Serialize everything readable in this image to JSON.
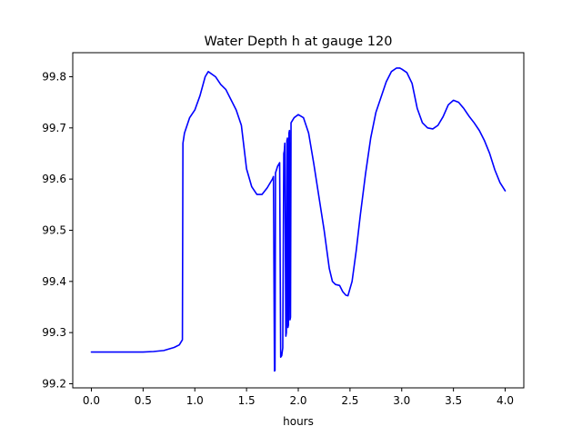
{
  "chart_data": {
    "type": "line",
    "title": "Water Depth h at gauge 120",
    "xlabel": "hours",
    "ylabel": "",
    "xlim": [
      -0.18,
      4.18
    ],
    "ylim": [
      99.192,
      99.847
    ],
    "xticks": [
      0.0,
      0.5,
      1.0,
      1.5,
      2.0,
      2.5,
      3.0,
      3.5,
      4.0
    ],
    "xtick_labels": [
      "0.0",
      "0.5",
      "1.0",
      "1.5",
      "2.0",
      "2.5",
      "3.0",
      "3.5",
      "4.0"
    ],
    "yticks": [
      99.2,
      99.3,
      99.4,
      99.5,
      99.6,
      99.7,
      99.8
    ],
    "ytick_labels": [
      "99.2",
      "99.3",
      "99.4",
      "99.5",
      "99.6",
      "99.7",
      "99.8"
    ],
    "grid": false,
    "legend": false,
    "series": [
      {
        "color": "#0000ff",
        "x": [
          0.0,
          0.3,
          0.5,
          0.6,
          0.7,
          0.8,
          0.85,
          0.88,
          0.885,
          0.9,
          0.95,
          1.0,
          1.05,
          1.1,
          1.13,
          1.2,
          1.25,
          1.3,
          1.35,
          1.4,
          1.45,
          1.5,
          1.55,
          1.6,
          1.65,
          1.7,
          1.75,
          1.76,
          1.77,
          1.775,
          1.78,
          1.8,
          1.82,
          1.83,
          1.84,
          1.85,
          1.86,
          1.865,
          1.87,
          1.88,
          1.885,
          1.89,
          1.895,
          1.9,
          1.905,
          1.91,
          1.915,
          1.92,
          1.925,
          1.93,
          1.96,
          2.0,
          2.05,
          2.1,
          2.15,
          2.2,
          2.25,
          2.3,
          2.33,
          2.36,
          2.4,
          2.43,
          2.46,
          2.48,
          2.52,
          2.56,
          2.6,
          2.65,
          2.7,
          2.75,
          2.8,
          2.85,
          2.9,
          2.95,
          2.98,
          3.0,
          3.05,
          3.1,
          3.15,
          3.2,
          3.25,
          3.3,
          3.35,
          3.4,
          3.45,
          3.5,
          3.55,
          3.6,
          3.65,
          3.7,
          3.75,
          3.8,
          3.85,
          3.9,
          3.95,
          4.0
        ],
        "values": [
          99.262,
          99.262,
          99.262,
          99.263,
          99.265,
          99.271,
          99.276,
          99.286,
          99.67,
          99.69,
          99.72,
          99.735,
          99.763,
          99.8,
          99.81,
          99.8,
          99.785,
          99.775,
          99.755,
          99.735,
          99.705,
          99.62,
          99.585,
          99.57,
          99.57,
          99.583,
          99.6,
          99.605,
          99.225,
          99.226,
          99.612,
          99.625,
          99.632,
          99.252,
          99.255,
          99.27,
          99.65,
          99.655,
          99.67,
          99.293,
          99.3,
          99.675,
          99.68,
          99.31,
          99.315,
          99.69,
          99.695,
          99.325,
          99.33,
          99.71,
          99.72,
          99.726,
          99.72,
          99.69,
          99.63,
          99.565,
          99.5,
          99.425,
          99.4,
          99.394,
          99.392,
          99.38,
          99.373,
          99.372,
          99.4,
          99.46,
          99.53,
          99.61,
          99.68,
          99.73,
          99.76,
          99.79,
          99.81,
          99.817,
          99.817,
          99.815,
          99.808,
          99.787,
          99.738,
          99.71,
          99.7,
          99.698,
          99.705,
          99.722,
          99.745,
          99.754,
          99.75,
          99.738,
          99.723,
          99.71,
          99.695,
          99.675,
          99.65,
          99.618,
          99.593,
          99.577
        ]
      }
    ]
  }
}
